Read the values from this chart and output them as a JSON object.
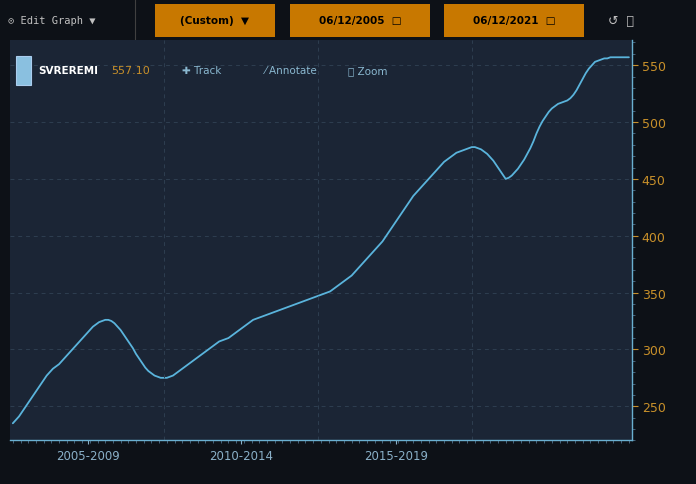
{
  "bg_color": "#1b2535",
  "outer_bg": "#0d1117",
  "toolbar_bg": "#0d1117",
  "line_color": "#5ab4dc",
  "grid_color": "#2a3a4a",
  "tick_color": "#c8902a",
  "xtick_color": "#8ab0c8",
  "legend_label": "SVREREMI",
  "legend_value": "557.10",
  "legend_box_color": "#8ac0e0",
  "ylim_min": 220,
  "ylim_max": 572,
  "yticks": [
    250,
    300,
    350,
    400,
    450,
    500,
    550
  ],
  "xtick_labels": [
    "2005-2009",
    "2010-2014",
    "2015-2019"
  ],
  "data_x": [
    0.0,
    0.005,
    0.01,
    0.015,
    0.02,
    0.025,
    0.03,
    0.035,
    0.04,
    0.045,
    0.05,
    0.055,
    0.06,
    0.065,
    0.07,
    0.075,
    0.08,
    0.085,
    0.09,
    0.095,
    0.1,
    0.105,
    0.11,
    0.115,
    0.12,
    0.125,
    0.13,
    0.135,
    0.14,
    0.145,
    0.15,
    0.155,
    0.16,
    0.165,
    0.17,
    0.175,
    0.18,
    0.185,
    0.19,
    0.195,
    0.2,
    0.205,
    0.21,
    0.215,
    0.22,
    0.225,
    0.23,
    0.235,
    0.24,
    0.245,
    0.25,
    0.255,
    0.26,
    0.265,
    0.27,
    0.275,
    0.28,
    0.285,
    0.29,
    0.295,
    0.3,
    0.305,
    0.31,
    0.315,
    0.32,
    0.325,
    0.33,
    0.335,
    0.34,
    0.345,
    0.35,
    0.355,
    0.36,
    0.365,
    0.37,
    0.375,
    0.38,
    0.385,
    0.39,
    0.395,
    0.4,
    0.405,
    0.41,
    0.415,
    0.42,
    0.425,
    0.43,
    0.435,
    0.44,
    0.445,
    0.45,
    0.455,
    0.46,
    0.465,
    0.47,
    0.475,
    0.48,
    0.485,
    0.49,
    0.495,
    0.5,
    0.505,
    0.51,
    0.515,
    0.52,
    0.525,
    0.53,
    0.535,
    0.54,
    0.545,
    0.55,
    0.555,
    0.56,
    0.565,
    0.57,
    0.575,
    0.58,
    0.585,
    0.59,
    0.595,
    0.6,
    0.605,
    0.61,
    0.615,
    0.62,
    0.625,
    0.63,
    0.635,
    0.64,
    0.645,
    0.65,
    0.655,
    0.66,
    0.665,
    0.67,
    0.675,
    0.68,
    0.685,
    0.69,
    0.695,
    0.7,
    0.705,
    0.71,
    0.715,
    0.72,
    0.725,
    0.73,
    0.735,
    0.74,
    0.745,
    0.75,
    0.755,
    0.76,
    0.765,
    0.77,
    0.775,
    0.78,
    0.785,
    0.79,
    0.795,
    0.8,
    0.805,
    0.81,
    0.815,
    0.82,
    0.825,
    0.83,
    0.835,
    0.84,
    0.845,
    0.85,
    0.855,
    0.86,
    0.865,
    0.87,
    0.875,
    0.88,
    0.885,
    0.89,
    0.895,
    0.9,
    0.905,
    0.91,
    0.915,
    0.92,
    0.925,
    0.93,
    0.935,
    0.94,
    0.945,
    0.95,
    0.955,
    0.96,
    0.965,
    0.97,
    0.975,
    0.98,
    0.985,
    0.99,
    0.995,
    1.0
  ],
  "data_y": [
    235,
    238,
    241,
    245,
    249,
    253,
    257,
    261,
    265,
    269,
    273,
    277,
    280,
    283,
    285,
    287,
    290,
    293,
    296,
    299,
    302,
    305,
    308,
    311,
    314,
    317,
    320,
    322,
    324,
    325,
    326,
    326,
    325,
    323,
    320,
    317,
    313,
    309,
    305,
    301,
    296,
    292,
    288,
    284,
    281,
    279,
    277,
    276,
    275,
    275,
    275,
    276,
    277,
    279,
    281,
    283,
    285,
    287,
    289,
    291,
    293,
    295,
    297,
    299,
    301,
    303,
    305,
    307,
    308,
    309,
    310,
    312,
    314,
    316,
    318,
    320,
    322,
    324,
    326,
    327,
    328,
    329,
    330,
    331,
    332,
    333,
    334,
    335,
    336,
    337,
    338,
    339,
    340,
    341,
    342,
    343,
    344,
    345,
    346,
    347,
    348,
    349,
    350,
    351,
    353,
    355,
    357,
    359,
    361,
    363,
    365,
    368,
    371,
    374,
    377,
    380,
    383,
    386,
    389,
    392,
    395,
    399,
    403,
    407,
    411,
    415,
    419,
    423,
    427,
    431,
    435,
    438,
    441,
    444,
    447,
    450,
    453,
    456,
    459,
    462,
    465,
    467,
    469,
    471,
    473,
    474,
    475,
    476,
    477,
    478,
    478,
    477,
    476,
    474,
    472,
    469,
    466,
    462,
    458,
    454,
    450,
    451,
    453,
    456,
    459,
    463,
    467,
    472,
    477,
    483,
    490,
    496,
    501,
    505,
    509,
    512,
    514,
    516,
    517,
    518,
    519,
    521,
    524,
    528,
    533,
    538,
    543,
    547,
    550,
    553,
    554,
    555,
    556,
    556,
    557,
    557,
    557,
    557,
    557,
    557,
    557
  ]
}
